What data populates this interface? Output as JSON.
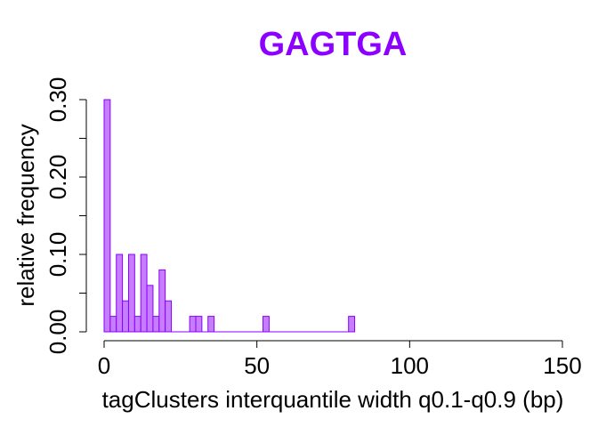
{
  "chart_data": {
    "type": "bar",
    "title": "GAGTGA",
    "xlabel": "tagClusters interquantile width q0.1-q0.9 (bp)",
    "ylabel": "relative frequency",
    "xlim": [
      0,
      150
    ],
    "ylim": [
      0,
      0.3
    ],
    "xticks": [
      {
        "value": 0,
        "label": "0"
      },
      {
        "value": 50,
        "label": "50"
      },
      {
        "value": 100,
        "label": "100"
      },
      {
        "value": 150,
        "label": "150"
      }
    ],
    "yticks": [
      {
        "value": 0.0,
        "label": "0.00"
      },
      {
        "value": 0.05,
        "label": ""
      },
      {
        "value": 0.1,
        "label": "0.10"
      },
      {
        "value": 0.15,
        "label": ""
      },
      {
        "value": 0.2,
        "label": "0.20"
      },
      {
        "value": 0.25,
        "label": ""
      },
      {
        "value": 0.3,
        "label": "0.30"
      }
    ],
    "bin_width": 2,
    "bins": [
      {
        "start": 0,
        "value": 0.3
      },
      {
        "start": 2,
        "value": 0.02
      },
      {
        "start": 4,
        "value": 0.1
      },
      {
        "start": 6,
        "value": 0.04
      },
      {
        "start": 8,
        "value": 0.1
      },
      {
        "start": 10,
        "value": 0.02
      },
      {
        "start": 12,
        "value": 0.1
      },
      {
        "start": 14,
        "value": 0.06
      },
      {
        "start": 16,
        "value": 0.02
      },
      {
        "start": 18,
        "value": 0.08
      },
      {
        "start": 20,
        "value": 0.04
      },
      {
        "start": 28,
        "value": 0.02
      },
      {
        "start": 30,
        "value": 0.02
      },
      {
        "start": 34,
        "value": 0.02
      },
      {
        "start": 52,
        "value": 0.02
      },
      {
        "start": 80,
        "value": 0.02
      }
    ],
    "baseline_range": [
      0,
      82
    ],
    "colors": {
      "title": "#8B00FF",
      "bar_fill": "#C77DFF",
      "bar_border": "#8B00FF"
    }
  }
}
